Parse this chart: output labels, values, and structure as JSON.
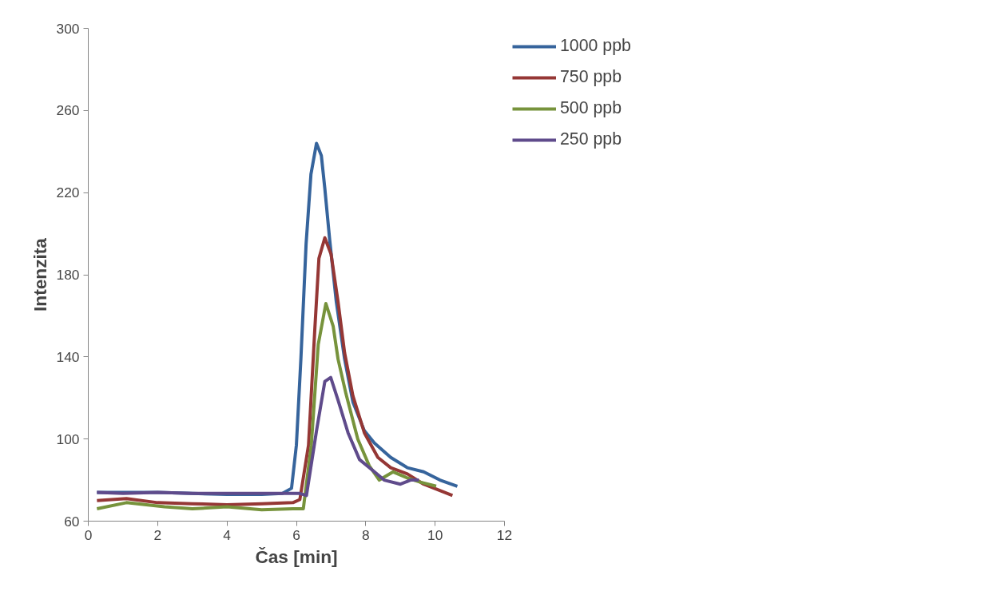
{
  "chart_data": {
    "type": "line",
    "xlabel": "Čas [min]",
    "ylabel": "Intenzita",
    "xlim": [
      0,
      12
    ],
    "ylim": [
      60,
      300
    ],
    "xticks": [
      0,
      2,
      4,
      6,
      8,
      10,
      12
    ],
    "yticks": [
      60,
      100,
      140,
      180,
      220,
      260,
      300
    ],
    "grid": false,
    "legend": "top right",
    "marker": "none",
    "line_style": "solid",
    "series": [
      {
        "name": "1000 ppb",
        "color": "#36649c",
        "x": [
          0.25,
          1,
          2,
          3,
          4,
          5,
          5.6,
          5.86,
          6.0,
          6.13,
          6.28,
          6.42,
          6.58,
          6.72,
          6.82,
          6.96,
          7.15,
          7.39,
          7.63,
          7.96,
          8.25,
          8.72,
          9.2,
          9.67,
          10.14,
          10.64
        ],
        "values": [
          74,
          74,
          74,
          73.5,
          73,
          73,
          73.5,
          76,
          97,
          139,
          195,
          229,
          244,
          238,
          222,
          197,
          167,
          139,
          118,
          104,
          98,
          91,
          86,
          84,
          80,
          77
        ]
      },
      {
        "name": "750 ppb",
        "color": "#953735",
        "x": [
          0.25,
          1.1,
          2,
          3,
          4,
          5,
          5.9,
          6.1,
          6.35,
          6.53,
          6.65,
          6.82,
          7.0,
          7.2,
          7.39,
          7.63,
          7.96,
          8.35,
          8.72,
          9.2,
          9.67,
          10.5
        ],
        "values": [
          70,
          71,
          69,
          68.5,
          68,
          68.5,
          69,
          70.5,
          97,
          153,
          188,
          198,
          190,
          167,
          142,
          121,
          103,
          91,
          86,
          83,
          78,
          72.5
        ]
      },
      {
        "name": "500 ppb",
        "color": "#77933c",
        "x": [
          0.25,
          1.1,
          2.2,
          3,
          4,
          5,
          5.9,
          6.2,
          6.43,
          6.63,
          6.85,
          7.06,
          7.2,
          7.43,
          7.77,
          8.1,
          8.39,
          8.79,
          9.2,
          9.57,
          10.03
        ],
        "values": [
          66,
          69,
          67,
          66,
          67,
          65.5,
          66,
          66,
          97,
          146,
          166,
          155,
          139,
          122,
          100,
          87,
          80,
          84,
          81,
          79,
          77
        ]
      },
      {
        "name": "250 ppb",
        "color": "#5f4b8b",
        "x": [
          0.25,
          1,
          2,
          3,
          4,
          5,
          6.1,
          6.29,
          6.58,
          6.82,
          6.99,
          7.2,
          7.49,
          7.82,
          8.25,
          8.53,
          9.0,
          9.29,
          9.53
        ],
        "values": [
          74,
          73.5,
          74,
          73.5,
          73.5,
          73.5,
          73.5,
          72.5,
          104,
          128,
          130,
          119,
          103,
          90,
          84,
          80,
          78,
          80,
          80
        ]
      }
    ]
  }
}
